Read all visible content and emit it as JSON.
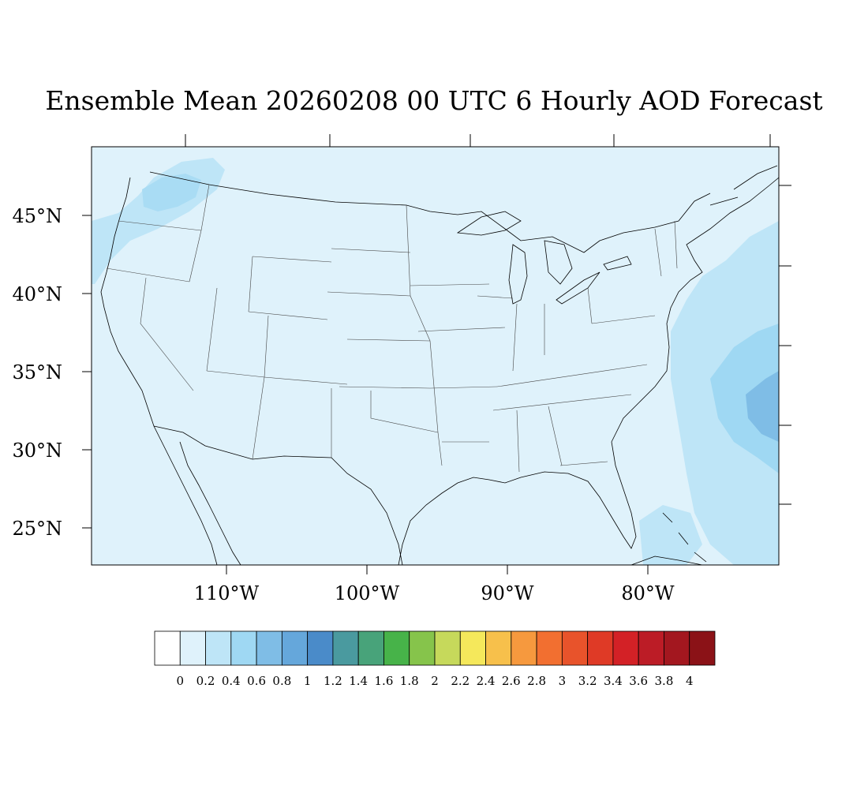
{
  "title": "Ensemble Mean 20260208 00 UTC 6 Hourly AOD Forecast",
  "map": {
    "region": "CONUS",
    "projection": "Lambert conformal",
    "lat_labels": [
      "45°N",
      "40°N",
      "35°N",
      "30°N",
      "25°N"
    ],
    "lon_labels": [
      "110°W",
      "100°W",
      "90°W",
      "80°W"
    ],
    "background_fill": "#dff2fb",
    "land_outline": "#000000"
  },
  "colorbar": {
    "labels": [
      "0",
      "0.2",
      "0.4",
      "0.6",
      "0.8",
      "1",
      "1.2",
      "1.4",
      "1.6",
      "1.8",
      "2",
      "2.2",
      "2.4",
      "2.6",
      "2.8",
      "3",
      "3.2",
      "3.4",
      "3.6",
      "3.8",
      "4"
    ],
    "colors": [
      "#ffffff",
      "#dff2fb",
      "#bee5f7",
      "#9fd8f3",
      "#7fbde6",
      "#65a7db",
      "#4a8bc9",
      "#4a9a9f",
      "#48a37a",
      "#47b349",
      "#86c44b",
      "#c6d95b",
      "#f5e85b",
      "#f7c04b",
      "#f6993e",
      "#f26f30",
      "#e8532b",
      "#df3a26",
      "#d32126",
      "#bc1c26",
      "#a3171f",
      "#8b1217"
    ]
  }
}
